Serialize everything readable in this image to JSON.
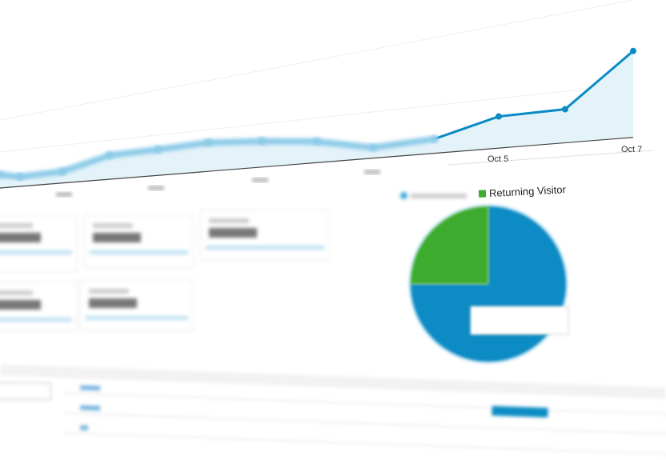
{
  "chart_data": [
    {
      "type": "area",
      "tick_labels": [
        "Oct 5",
        "Oct 7"
      ],
      "values": [
        14,
        10,
        12,
        25,
        27,
        30,
        27,
        22,
        11,
        15,
        33,
        35,
        90
      ],
      "grid": true,
      "color": "#0a8bc4",
      "fill": "#e4f2f9"
    },
    {
      "type": "pie",
      "legend": [
        "",
        "Returning Visitor"
      ],
      "values": [
        75,
        25
      ],
      "colors": [
        "#0a8bc4",
        "#3dab2e"
      ]
    }
  ]
}
